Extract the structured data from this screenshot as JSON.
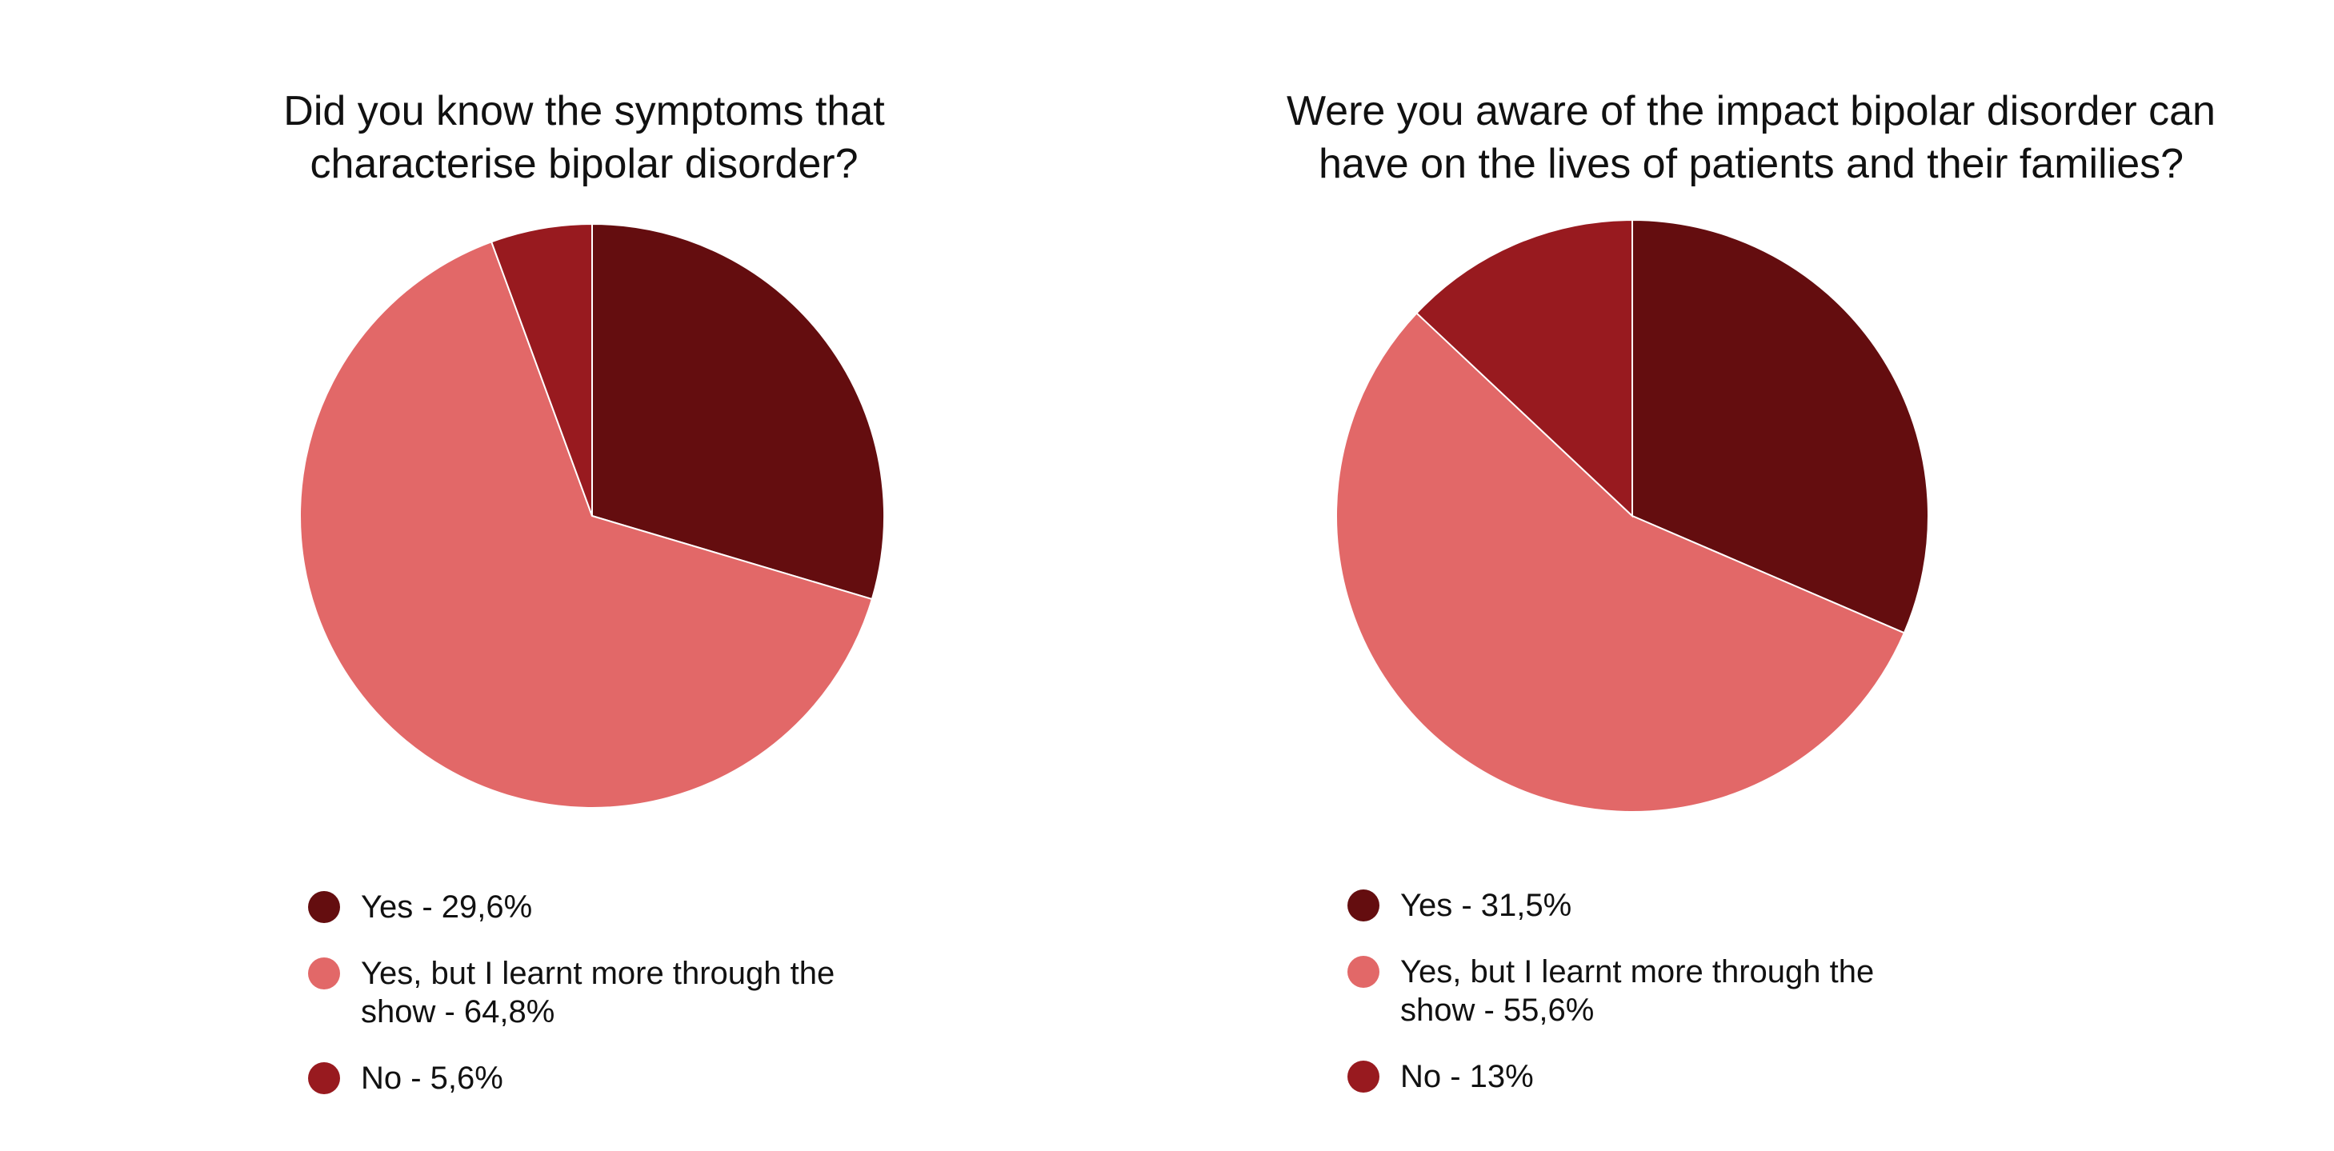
{
  "chart_data": [
    {
      "type": "pie",
      "title": [
        "Did you know the symptoms that",
        "characterise bipolar disorder?"
      ],
      "slices": [
        {
          "label": "Yes - 29,6%",
          "value": 29.6,
          "color": "#640d0f"
        },
        {
          "label": "Yes, but I learnt more through the show - 64,8%",
          "value": 64.8,
          "color": "#e26868"
        },
        {
          "label": "No - 5,6%",
          "value": 5.6,
          "color": "#981a1f"
        }
      ],
      "legend_position": "bottom"
    },
    {
      "type": "pie",
      "title": [
        "Were you aware of the impact bipolar disorder can",
        "have on the lives of patients and their families?"
      ],
      "slices": [
        {
          "label": "Yes - 31,5%",
          "value": 31.5,
          "color": "#640d0f"
        },
        {
          "label": "Yes, but I learnt more through the show - 55,6%",
          "value": 55.6,
          "color": "#e26868"
        },
        {
          "label": "No - 13%",
          "value": 13,
          "color": "#981a1f"
        }
      ],
      "legend_position": "bottom"
    }
  ]
}
